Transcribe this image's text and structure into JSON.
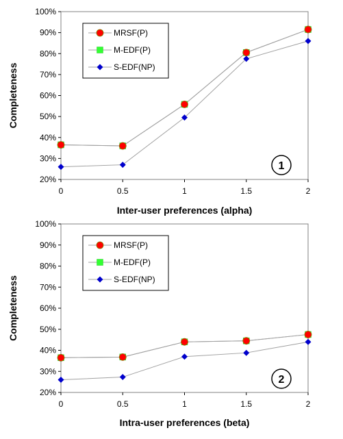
{
  "chart_data": [
    {
      "type": "line",
      "xlabel": "Inter-user preferences (alpha)",
      "ylabel": "Completeness",
      "badge": "1",
      "x": [
        0,
        0.5,
        1,
        1.5,
        2
      ],
      "x_tick_labels": [
        "0",
        "0.5",
        "1",
        "1.5",
        "2"
      ],
      "y_tick_labels": [
        "20%",
        "30%",
        "40%",
        "50%",
        "60%",
        "70%",
        "80%",
        "90%",
        "100%"
      ],
      "ylim": [
        20,
        100
      ],
      "grid": false,
      "legend_position": "top-left",
      "series": [
        {
          "name": "MRSF(P)",
          "marker": "circle",
          "color": "#ff0000",
          "values": [
            36.5,
            36.0,
            55.8,
            80.5,
            91.5
          ]
        },
        {
          "name": "M-EDF(P)",
          "marker": "square",
          "color": "#33ff33",
          "values": [
            36.5,
            36.0,
            55.8,
            80.5,
            91.5
          ]
        },
        {
          "name": "S-EDF(NP)",
          "marker": "diamond",
          "color": "#0000cc",
          "values": [
            26.0,
            27.0,
            49.5,
            77.5,
            86.0
          ]
        }
      ]
    },
    {
      "type": "line",
      "xlabel": "Intra-user preferences (beta)",
      "ylabel": "Completeness",
      "badge": "2",
      "x": [
        0,
        0.5,
        1,
        1.5,
        2
      ],
      "x_tick_labels": [
        "0",
        "0.5",
        "1",
        "1.5",
        "2"
      ],
      "y_tick_labels": [
        "20%",
        "30%",
        "40%",
        "50%",
        "60%",
        "70%",
        "80%",
        "90%",
        "100%"
      ],
      "ylim": [
        20,
        100
      ],
      "grid": false,
      "legend_position": "top-left",
      "series": [
        {
          "name": "MRSF(P)",
          "marker": "circle",
          "color": "#ff0000",
          "values": [
            36.5,
            36.8,
            44.0,
            44.5,
            47.5
          ]
        },
        {
          "name": "M-EDF(P)",
          "marker": "square",
          "color": "#33ff33",
          "values": [
            36.5,
            36.8,
            44.0,
            44.5,
            47.5
          ]
        },
        {
          "name": "S-EDF(NP)",
          "marker": "diamond",
          "color": "#0000cc",
          "values": [
            26.0,
            27.3,
            37.0,
            38.8,
            44.0
          ]
        }
      ]
    }
  ]
}
